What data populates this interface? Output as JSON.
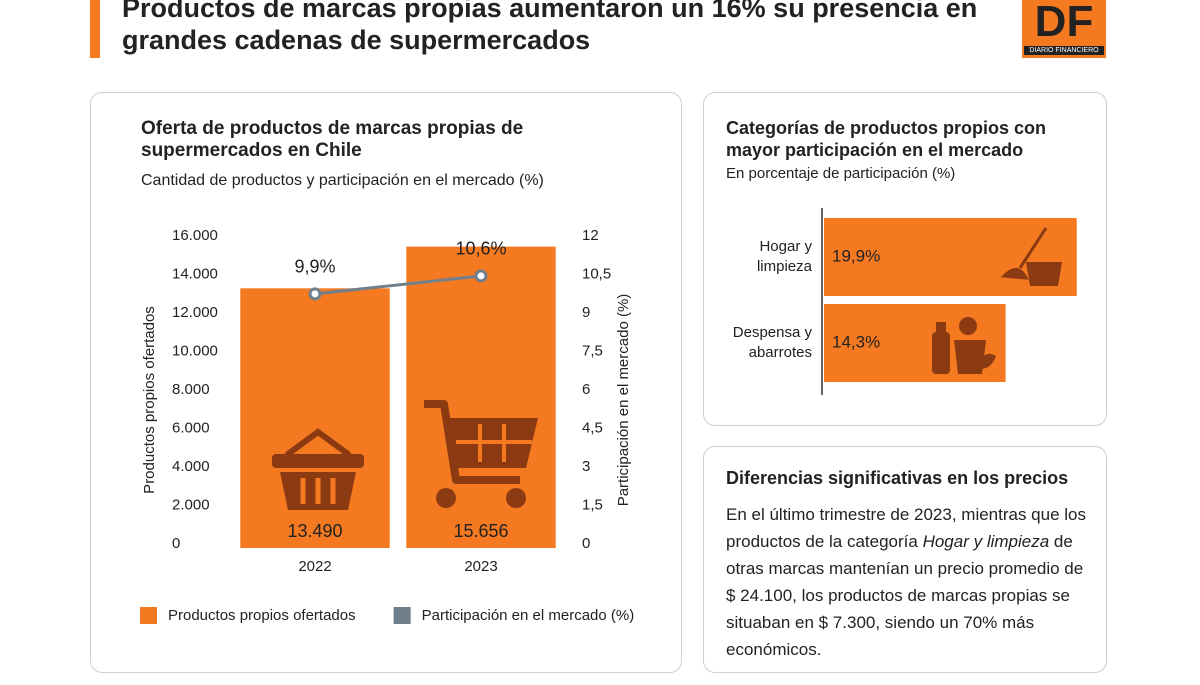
{
  "header": {
    "title": "Productos de marcas propias aumentaron un 16% su presencia en grandes cadenas de supermercados",
    "logo": "DF",
    "logo_caption": "DIARIO FINANCIERO"
  },
  "chart_data": [
    {
      "type": "bar",
      "title": "Oferta de productos de marcas propias de supermercados en Chile",
      "subtitle": "Cantidad de productos y participación en el mercado (%)",
      "ylabel": "Productos propios ofertados",
      "y2label": "Participación en el mercado (%)",
      "categories": [
        "2022",
        "2023"
      ],
      "series": [
        {
          "name": "Productos propios ofertados",
          "type": "bar",
          "color": "#f47920",
          "values": [
            13490,
            15656
          ],
          "value_labels": [
            "13.490",
            "15.656"
          ]
        },
        {
          "name": "Participación en el mercado (%)",
          "type": "line",
          "axis": "y2",
          "color": "#6f7f8c",
          "values": [
            9.9,
            10.6
          ],
          "value_labels": [
            "9,9%",
            "10,6%"
          ]
        }
      ],
      "ylim": [
        0,
        16000
      ],
      "yticks": [
        0,
        {
          "value": 2000,
          "label": "2.000"
        },
        {
          "value": 4000,
          "label": "4.000"
        },
        {
          "value": 6000,
          "label": "6.000"
        },
        {
          "value": 8000,
          "label": "8.000"
        },
        {
          "value": 10000,
          "label": "10.000"
        },
        {
          "value": 12000,
          "label": "12.000"
        },
        {
          "value": 14000,
          "label": "14.000"
        },
        {
          "value": 16000,
          "label": "16.000"
        }
      ],
      "y2lim": [
        0,
        12
      ],
      "y2ticks": [
        0,
        {
          "value": 1.5,
          "label": "1,5"
        },
        3,
        {
          "value": 4.5,
          "label": "4,5"
        },
        6,
        {
          "value": 7.5,
          "label": "7,5"
        },
        9,
        {
          "value": 10.5,
          "label": "10,5"
        },
        12
      ],
      "legend": "bottom",
      "grid": false
    },
    {
      "type": "bar",
      "orientation": "horizontal",
      "title": "Categorías de productos propios con mayor participación en el mercado",
      "subtitle": "En porcentaje de participación (%)",
      "categories": [
        "Hogar y limpieza",
        "Despensa y abarrotes"
      ],
      "values": [
        19.9,
        14.3
      ],
      "value_labels": [
        "19,9%",
        "14,3%"
      ],
      "color": "#f47920"
    }
  ],
  "note": {
    "title": "Diferencias significativas en los precios",
    "text": [
      "En el último trimestre de 2023, mientras que los productos de la categoría ",
      "Hogar y limpieza",
      " de otras marcas mantenían un precio promedio de $ 24.100, los productos de marcas propias se situaban en $ 7.300, siendo un 70% más económicos."
    ]
  }
}
